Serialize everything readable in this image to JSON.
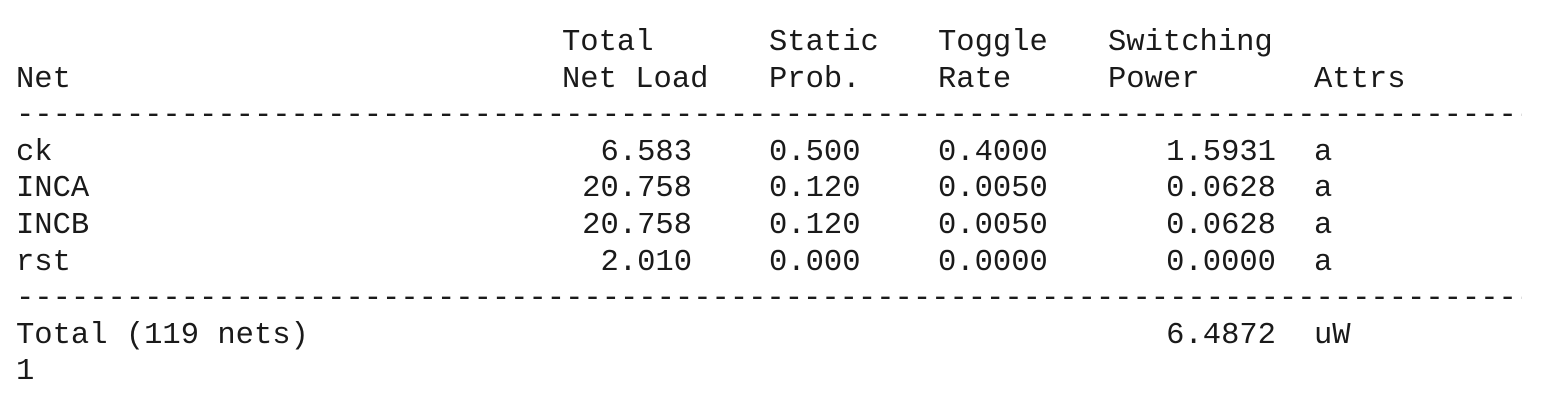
{
  "header": {
    "line1": {
      "load": "Total",
      "prob": "Static",
      "toggle": "Toggle",
      "switching": "Switching"
    },
    "line2": {
      "net": "Net",
      "load": "Net Load",
      "prob": "Prob.",
      "toggle": "Rate",
      "switching": "Power",
      "attrs": "Attrs"
    }
  },
  "separator": "-------------------------------------------------------------------------------------------",
  "rows": [
    {
      "net": "ck",
      "load": "6.583",
      "prob": "0.500",
      "toggle": "0.4000",
      "switching": "1.5931",
      "attrs": "a"
    },
    {
      "net": "INCA",
      "load": "20.758",
      "prob": "0.120",
      "toggle": "0.0050",
      "switching": "0.0628",
      "attrs": "a"
    },
    {
      "net": "INCB",
      "load": "20.758",
      "prob": "0.120",
      "toggle": "0.0050",
      "switching": "0.0628",
      "attrs": "a"
    },
    {
      "net": "rst",
      "load": "2.010",
      "prob": "0.000",
      "toggle": "0.0000",
      "switching": "0.0000",
      "attrs": "a"
    }
  ],
  "total": {
    "label": "Total (119 nets)",
    "value": "6.4872",
    "unit": "uW"
  },
  "footer": "1"
}
